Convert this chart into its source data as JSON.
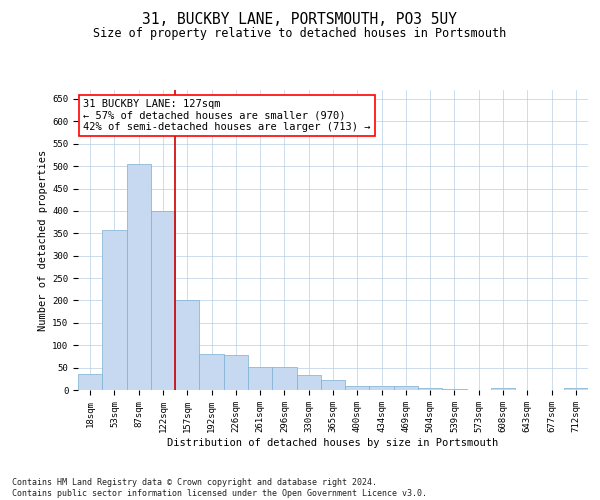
{
  "title": "31, BUCKBY LANE, PORTSMOUTH, PO3 5UY",
  "subtitle": "Size of property relative to detached houses in Portsmouth",
  "xlabel": "Distribution of detached houses by size in Portsmouth",
  "ylabel": "Number of detached properties",
  "bar_color": "#c6d9f0",
  "bar_edge_color": "#7aafd4",
  "grid_color": "#b8cfe4",
  "background_color": "#ffffff",
  "annotation_line1": "31 BUCKBY LANE: 127sqm",
  "annotation_line2": "← 57% of detached houses are smaller (970)",
  "annotation_line3": "42% of semi-detached houses are larger (713) →",
  "vline_color": "#cc0000",
  "categories": [
    "18sqm",
    "53sqm",
    "87sqm",
    "122sqm",
    "157sqm",
    "192sqm",
    "226sqm",
    "261sqm",
    "296sqm",
    "330sqm",
    "365sqm",
    "400sqm",
    "434sqm",
    "469sqm",
    "504sqm",
    "539sqm",
    "573sqm",
    "608sqm",
    "643sqm",
    "677sqm",
    "712sqm"
  ],
  "values": [
    35,
    357,
    505,
    400,
    200,
    80,
    78,
    52,
    52,
    33,
    22,
    10,
    9,
    8,
    5,
    3,
    0,
    4,
    0,
    0,
    4
  ],
  "vline_index": 3.5,
  "ylim": [
    0,
    670
  ],
  "yticks": [
    0,
    50,
    100,
    150,
    200,
    250,
    300,
    350,
    400,
    450,
    500,
    550,
    600,
    650
  ],
  "footer": "Contains HM Land Registry data © Crown copyright and database right 2024.\nContains public sector information licensed under the Open Government Licence v3.0.",
  "title_fontsize": 10.5,
  "subtitle_fontsize": 8.5,
  "axis_label_fontsize": 7.5,
  "tick_fontsize": 6.5,
  "annotation_fontsize": 7.5,
  "footer_fontsize": 6.0
}
